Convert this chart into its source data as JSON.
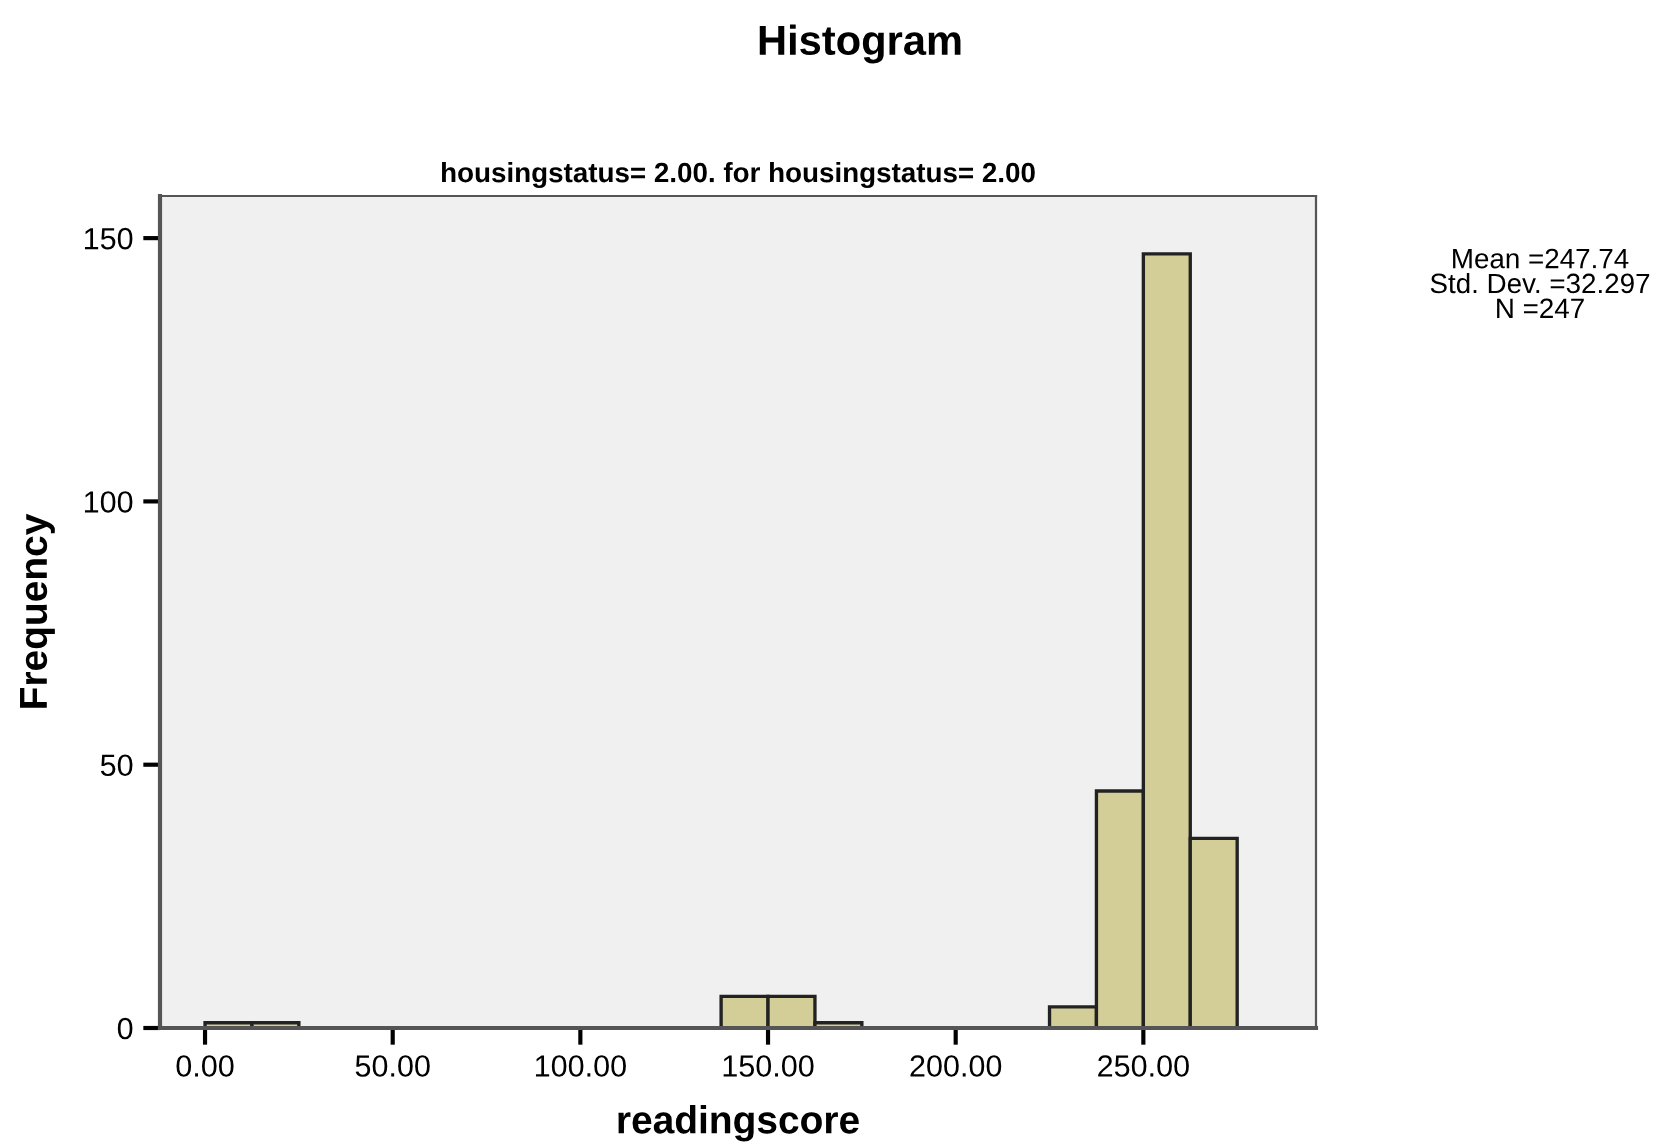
{
  "chart_data": {
    "type": "histogram",
    "title": "Histogram",
    "subtitle": "housingstatus= 2.00. for housingstatus= 2.00",
    "xlabel": "readingscore",
    "ylabel": "Frequency",
    "bins": [
      0,
      12.5,
      25,
      37.5,
      50,
      62.5,
      75,
      87.5,
      100,
      112.5,
      125,
      137.5,
      150,
      162.5,
      175,
      187.5,
      200,
      212.5,
      225,
      237.5,
      250,
      262.5,
      275
    ],
    "values": [
      1,
      1,
      0,
      0,
      0,
      0,
      0,
      0,
      0,
      0,
      0,
      6,
      6,
      1,
      0,
      0,
      0,
      0,
      4,
      45,
      147,
      36
    ],
    "color": "#d3ce98",
    "xlim": [
      -12,
      296
    ],
    "ylim": [
      0,
      158
    ],
    "xticks": [
      {
        "value": 0,
        "label": "0.00"
      },
      {
        "value": 50,
        "label": "50.00"
      },
      {
        "value": 100,
        "label": "100.00"
      },
      {
        "value": 150,
        "label": "150.00"
      },
      {
        "value": 200,
        "label": "200.00"
      },
      {
        "value": 250,
        "label": "250.00"
      }
    ],
    "yticks": [
      0,
      50,
      100,
      150
    ],
    "grid": false,
    "legend": false,
    "annotations": [
      "Mean =247.74\nStd. Dev. =32.297\nN =247"
    ]
  }
}
